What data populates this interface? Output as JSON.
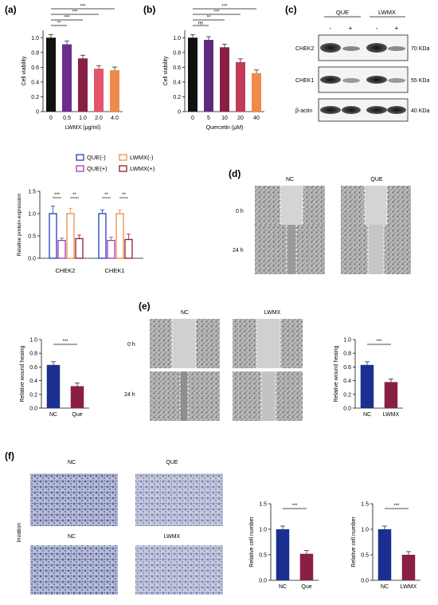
{
  "panels": {
    "a": {
      "label": "(a)",
      "ylabel": "Cell viability",
      "xlabel": "LWMX (μg/ml)",
      "categories": [
        "0",
        "0.5",
        "1.0",
        "2.0",
        "4.0"
      ],
      "values": [
        1.0,
        0.91,
        0.72,
        0.58,
        0.56
      ],
      "colors": [
        "#111111",
        "#6d2c8e",
        "#8a1f44",
        "#e3546b",
        "#f08a4b"
      ],
      "ylim": [
        0,
        1.1
      ],
      "yticks": [
        "0",
        "0.2",
        "0.4",
        "0.6",
        "0.8",
        "1.0"
      ],
      "brackets": [
        {
          "from": 0,
          "to": 1,
          "label": "**"
        },
        {
          "from": 0,
          "to": 2,
          "label": "***"
        },
        {
          "from": 0,
          "to": 3,
          "label": "***"
        },
        {
          "from": 0,
          "to": 4,
          "label": "***"
        }
      ]
    },
    "b": {
      "label": "(b)",
      "ylabel": "Cell viability",
      "xlabel": "Quercetin (μM)",
      "categories": [
        "0",
        "5",
        "10",
        "20",
        "40"
      ],
      "values": [
        1.0,
        0.97,
        0.87,
        0.67,
        0.52
      ],
      "colors": [
        "#111111",
        "#5e2a7e",
        "#8a1f44",
        "#c23b5a",
        "#f08a4b"
      ],
      "ylim": [
        0,
        1.1
      ],
      "yticks": [
        "0",
        "0.2",
        "0.4",
        "0.6",
        "0.8",
        "1.0"
      ],
      "brackets": [
        {
          "from": 0,
          "to": 1,
          "label": "ns"
        },
        {
          "from": 0,
          "to": 2,
          "label": "**"
        },
        {
          "from": 0,
          "to": 3,
          "label": "***"
        },
        {
          "from": 0,
          "to": 4,
          "label": "***"
        }
      ]
    },
    "c": {
      "label": "(c)",
      "groups": [
        "QUE",
        "LWMX"
      ],
      "signs": [
        "-",
        "+",
        "-",
        "+"
      ],
      "rows": [
        {
          "name": "CHEK2",
          "kda": "70 KDa"
        },
        {
          "name": "CHEK1",
          "kda": "55 KDa"
        },
        {
          "name": "β-actin",
          "kda": "40 KDa"
        }
      ]
    },
    "protein": {
      "ylabel": "Relative protein expression",
      "legend": [
        "QUE(-)",
        "LWMX(-)",
        "QUE(+)",
        "LWMX(+)"
      ],
      "colors": [
        "#1f3fbf",
        "#f08a4b",
        "#a23ab8",
        "#8a1f2a"
      ],
      "categories": [
        "CHEK2",
        "CHEK1"
      ],
      "values": [
        [
          1.0,
          0.4,
          1.0,
          0.44
        ],
        [
          1.0,
          0.4,
          1.0,
          0.42
        ]
      ],
      "errors": [
        [
          0.17,
          0.05,
          0.12,
          0.08
        ],
        [
          0.08,
          0.07,
          0.08,
          0.12
        ]
      ],
      "ylim": [
        0,
        1.5
      ],
      "yticks": [
        "0.0",
        "0.5",
        "1.0",
        "1.5"
      ],
      "stars": [
        "***",
        "**",
        "**",
        "**"
      ]
    },
    "d": {
      "label": "(d)",
      "cols": [
        "NC",
        "QUE"
      ],
      "rows": [
        "0 h",
        "24 h"
      ]
    },
    "wound_que": {
      "ylabel": "Relative wound heaing",
      "categories": [
        "NC",
        "Que"
      ],
      "values": [
        0.63,
        0.32
      ],
      "colors": [
        "#1a2f8f",
        "#8a1f44"
      ],
      "ylim": [
        0,
        1.0
      ],
      "yticks": [
        "0.0",
        "0.2",
        "0.4",
        "0.6",
        "0.8",
        "1.0"
      ],
      "star": "***"
    },
    "e": {
      "label": "(e)",
      "cols": [
        "NC",
        "LWMX"
      ],
      "rows": [
        "0 h",
        "24 h"
      ]
    },
    "wound_lwmx": {
      "ylabel": "Relative wound heaing",
      "categories": [
        "NC",
        "LWMX"
      ],
      "values": [
        0.63,
        0.38
      ],
      "colors": [
        "#1a2f8f",
        "#8a1f44"
      ],
      "ylim": [
        0,
        1.0
      ],
      "yticks": [
        "0.0",
        "0.2",
        "0.4",
        "0.6",
        "0.8",
        "1.0"
      ],
      "star": "***"
    },
    "f": {
      "label": "(f)",
      "side": "Invation",
      "top_cols": [
        "NC",
        "QUE"
      ],
      "bottom_cols": [
        "NC",
        "LWMX"
      ]
    },
    "inv_que": {
      "ylabel": "Relative cell number",
      "categories": [
        "NC",
        "Que"
      ],
      "values": [
        1.0,
        0.52
      ],
      "colors": [
        "#1a2f8f",
        "#8a1f44"
      ],
      "ylim": [
        0,
        1.5
      ],
      "yticks": [
        "0.0",
        "0.5",
        "1.0",
        "1.5"
      ],
      "star": "***"
    },
    "inv_lwmx": {
      "ylabel": "Relative cell number",
      "categories": [
        "NC",
        "LWMX"
      ],
      "values": [
        1.0,
        0.5
      ],
      "colors": [
        "#1a2f8f",
        "#8a1f44"
      ],
      "ylim": [
        0,
        1.5
      ],
      "yticks": [
        "0.0",
        "0.5",
        "1.0",
        "1.5"
      ],
      "star": "***"
    }
  },
  "chart_data": [
    {
      "type": "bar",
      "title": "",
      "xlabel": "LWMX (μg/ml)",
      "ylabel": "Cell viability",
      "categories": [
        "0",
        "0.5",
        "1.0",
        "2.0",
        "4.0"
      ],
      "values": [
        1.0,
        0.91,
        0.72,
        0.58,
        0.56
      ],
      "ylim": [
        0,
        1.1
      ]
    },
    {
      "type": "bar",
      "title": "",
      "xlabel": "Quercetin (μM)",
      "ylabel": "Cell viability",
      "categories": [
        "0",
        "5",
        "10",
        "20",
        "40"
      ],
      "values": [
        1.0,
        0.97,
        0.87,
        0.67,
        0.52
      ],
      "ylim": [
        0,
        1.1
      ]
    },
    {
      "type": "bar",
      "title": "",
      "xlabel": "",
      "ylabel": "Relative protein expression",
      "categories": [
        "CHEK2",
        "CHEK1"
      ],
      "series": [
        {
          "name": "QUE(-)",
          "values": [
            1.0,
            1.0
          ]
        },
        {
          "name": "QUE(+)",
          "values": [
            0.4,
            0.4
          ]
        },
        {
          "name": "LWMX(-)",
          "values": [
            1.0,
            1.0
          ]
        },
        {
          "name": "LWMX(+)",
          "values": [
            0.44,
            0.42
          ]
        }
      ],
      "ylim": [
        0,
        1.5
      ]
    },
    {
      "type": "bar",
      "title": "",
      "xlabel": "",
      "ylabel": "Relative wound heaing",
      "categories": [
        "NC",
        "Que"
      ],
      "values": [
        0.63,
        0.32
      ],
      "ylim": [
        0,
        1.0
      ]
    },
    {
      "type": "bar",
      "title": "",
      "xlabel": "",
      "ylabel": "Relative wound heaing",
      "categories": [
        "NC",
        "LWMX"
      ],
      "values": [
        0.63,
        0.38
      ],
      "ylim": [
        0,
        1.0
      ]
    },
    {
      "type": "bar",
      "title": "",
      "xlabel": "",
      "ylabel": "Relative cell number",
      "categories": [
        "NC",
        "Que"
      ],
      "values": [
        1.0,
        0.52
      ],
      "ylim": [
        0,
        1.5
      ]
    },
    {
      "type": "bar",
      "title": "",
      "xlabel": "",
      "ylabel": "Relative cell number",
      "categories": [
        "NC",
        "LWMX"
      ],
      "values": [
        1.0,
        0.5
      ],
      "ylim": [
        0,
        1.5
      ]
    }
  ]
}
